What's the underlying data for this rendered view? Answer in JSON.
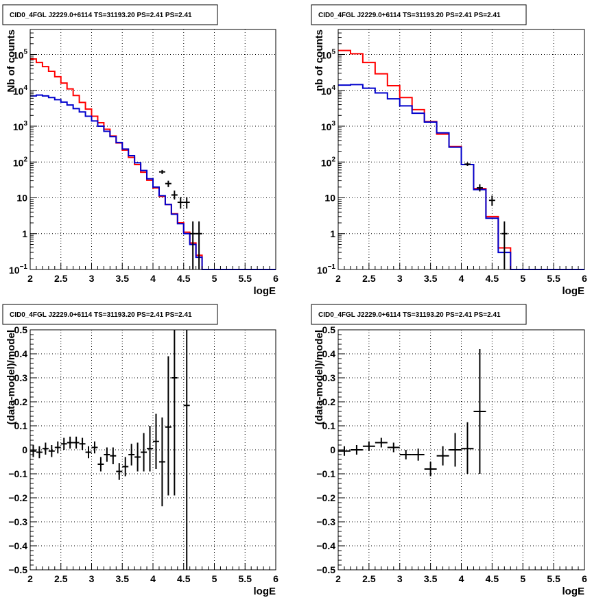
{
  "colors": {
    "model_a": "#ff0000",
    "model_b": "#0000cc",
    "data": "#000000",
    "grid": "#000000",
    "frame": "#000000"
  },
  "chart_data": [
    {
      "type": "line",
      "panel": "top-left",
      "title": "CID0_4FGL J2229.0+6114 TS=31193.20 PS=2.41 PS=2.41",
      "xlabel": "logE",
      "ylabel": "Nb of counts",
      "xlim": [
        2,
        6
      ],
      "ylim": [
        0.1,
        500000
      ],
      "yscale": "log",
      "grid": true,
      "xticks": [
        "2",
        "2.5",
        "3",
        "3.5",
        "4",
        "4.5",
        "5",
        "5.5",
        "6"
      ],
      "yticks": [
        {
          "v": 0.1,
          "b": "10",
          "e": "−1"
        },
        {
          "v": 1,
          "b": "1",
          "e": ""
        },
        {
          "v": 10,
          "b": "10",
          "e": ""
        },
        {
          "v": 100,
          "b": "10",
          "e": "2"
        },
        {
          "v": 1000,
          "b": "10",
          "e": "3"
        },
        {
          "v": 10000,
          "b": "10",
          "e": "4"
        },
        {
          "v": 100000,
          "b": "10",
          "e": "5"
        }
      ],
      "bin_edges": [
        2.0,
        2.1,
        2.2,
        2.3,
        2.4,
        2.5,
        2.6,
        2.7,
        2.8,
        2.9,
        3.0,
        3.1,
        3.2,
        3.3,
        3.4,
        3.5,
        3.6,
        3.7,
        3.8,
        3.9,
        4.0,
        4.1,
        4.2,
        4.3,
        4.4,
        4.5,
        4.6,
        4.7,
        4.8,
        4.9,
        5.0,
        5.1,
        5.2,
        5.3,
        5.4,
        5.5,
        5.6,
        5.7,
        5.8,
        5.9,
        6.0
      ],
      "series": [
        {
          "name": "",
          "style": "red-hist",
          "values": [
            75000,
            60000,
            46000,
            34000,
            24000,
            16000,
            11000,
            7200,
            4600,
            3000,
            1900,
            1250,
            820,
            530,
            340,
            215,
            135,
            85,
            52,
            31,
            19,
            11,
            6.5,
            3.6,
            2,
            1.1,
            0.55,
            0.25,
            0.1,
            0.1,
            0.1,
            0.1,
            0.1,
            0.1,
            0.1,
            0.1,
            0.1,
            0.1,
            0.1,
            0.1
          ]
        },
        {
          "name": "",
          "style": "blue-hist",
          "values": [
            7000,
            7400,
            7000,
            6300,
            5500,
            4700,
            3900,
            3100,
            2500,
            1900,
            1400,
            1000,
            720,
            510,
            350,
            230,
            150,
            95,
            58,
            34,
            20,
            11.5,
            6.5,
            3.5,
            1.9,
            1.0,
            0.5,
            0.22,
            0.1,
            0.1,
            0.1,
            0.1,
            0.1,
            0.1,
            0.1,
            0.1,
            0.1,
            0.1,
            0.1,
            0.1
          ]
        },
        {
          "name": "",
          "style": "data",
          "points": [
            {
              "x": 4.15,
              "y": 53,
              "ylo": 46,
              "yhi": 60
            },
            {
              "x": 4.25,
              "y": 25,
              "ylo": 20,
              "yhi": 30
            },
            {
              "x": 4.35,
              "y": 12,
              "ylo": 9,
              "yhi": 16
            },
            {
              "x": 4.45,
              "y": 7.5,
              "ylo": 5,
              "yhi": 10.5
            },
            {
              "x": 4.55,
              "y": 7.5,
              "ylo": 5,
              "yhi": 10.5
            },
            {
              "x": 4.65,
              "y": 1,
              "ylo": 0.1,
              "yhi": 2.2
            },
            {
              "x": 4.75,
              "y": 1,
              "ylo": 0.1,
              "yhi": 2.2
            }
          ]
        }
      ]
    },
    {
      "type": "line",
      "panel": "top-right",
      "title": "CID0_4FGL J2229.0+6114 TS=31193.20 PS=2.41 PS=2.41",
      "xlabel": "logE",
      "ylabel": "nb of counts",
      "xlim": [
        2,
        6
      ],
      "ylim": [
        0.1,
        500000
      ],
      "yscale": "log",
      "grid": true,
      "xticks": [
        "2",
        "2.5",
        "3",
        "3.5",
        "4",
        "4.5",
        "5",
        "5.5",
        "6"
      ],
      "yticks": [
        {
          "v": 0.1,
          "b": "10",
          "e": "−1"
        },
        {
          "v": 1,
          "b": "1",
          "e": ""
        },
        {
          "v": 10,
          "b": "10",
          "e": ""
        },
        {
          "v": 100,
          "b": "10",
          "e": "2"
        },
        {
          "v": 1000,
          "b": "10",
          "e": "3"
        },
        {
          "v": 10000,
          "b": "10",
          "e": "4"
        },
        {
          "v": 100000,
          "b": "10",
          "e": "5"
        }
      ],
      "bin_edges": [
        2.0,
        2.2,
        2.4,
        2.6,
        2.8,
        3.0,
        3.2,
        3.4,
        3.6,
        3.8,
        4.0,
        4.2,
        4.4,
        4.6,
        4.8,
        5.0,
        5.2,
        5.4,
        5.6,
        5.8,
        6.0
      ],
      "series": [
        {
          "name": "",
          "style": "red-hist",
          "values": [
            130000,
            105000,
            60000,
            29000,
            13500,
            6300,
            2900,
            1350,
            600,
            270,
            85,
            18,
            3,
            0.4,
            0.1,
            0.1,
            0.1,
            0.1,
            0.1,
            0.1
          ]
        },
        {
          "name": "",
          "style": "blue-hist",
          "values": [
            14000,
            14500,
            11500,
            8500,
            5800,
            3700,
            2300,
            1300,
            650,
            260,
            85,
            17,
            2.7,
            0.3,
            0.1,
            0.1,
            0.1,
            0.1,
            0.1,
            0.1
          ]
        },
        {
          "name": "",
          "style": "data",
          "points": [
            {
              "x": 4.1,
              "y": 87,
              "ylo": 78,
              "yhi": 96
            },
            {
              "x": 4.3,
              "y": 19,
              "ylo": 15,
              "yhi": 24
            },
            {
              "x": 4.5,
              "y": 8.5,
              "ylo": 6,
              "yhi": 11.5
            },
            {
              "x": 4.7,
              "y": 1,
              "ylo": 0.1,
              "yhi": 2.2
            }
          ]
        }
      ]
    },
    {
      "type": "scatter",
      "panel": "bottom-left",
      "title": "CID0_4FGL J2229.0+6114 TS=31193.20 PS=2.41 PS=2.41",
      "xlabel": "logE",
      "ylabel": "(data-model)/model",
      "xlim": [
        2,
        6
      ],
      "ylim": [
        -0.5,
        0.5
      ],
      "yscale": "linear",
      "grid": true,
      "xticks": [
        "2",
        "2.5",
        "3",
        "3.5",
        "4",
        "4.5",
        "5",
        "5.5",
        "6"
      ],
      "yticks": [
        {
          "v": -0.5,
          "b": "−0.5",
          "e": ""
        },
        {
          "v": -0.4,
          "b": "−0.4",
          "e": ""
        },
        {
          "v": -0.3,
          "b": "−0.3",
          "e": ""
        },
        {
          "v": -0.2,
          "b": "−0.2",
          "e": ""
        },
        {
          "v": -0.1,
          "b": "−0.1",
          "e": ""
        },
        {
          "v": 0,
          "b": "0",
          "e": ""
        },
        {
          "v": 0.1,
          "b": "0.1",
          "e": ""
        },
        {
          "v": 0.2,
          "b": "0.2",
          "e": ""
        },
        {
          "v": 0.3,
          "b": "0.3",
          "e": ""
        },
        {
          "v": 0.4,
          "b": "0.4",
          "e": ""
        },
        {
          "v": 0.5,
          "b": "0.5",
          "e": ""
        }
      ],
      "series": [
        {
          "name": "",
          "style": "data",
          "halfwidth": 0.05,
          "points": [
            {
              "x": 2.05,
              "y": -0.005,
              "ylo": -0.03,
              "yhi": 0.02
            },
            {
              "x": 2.15,
              "y": -0.01,
              "ylo": -0.035,
              "yhi": 0.015
            },
            {
              "x": 2.25,
              "y": 0.005,
              "ylo": -0.02,
              "yhi": 0.03
            },
            {
              "x": 2.35,
              "y": -0.005,
              "ylo": -0.03,
              "yhi": 0.02
            },
            {
              "x": 2.45,
              "y": 0.01,
              "ylo": -0.015,
              "yhi": 0.035
            },
            {
              "x": 2.55,
              "y": 0.025,
              "ylo": 0.0,
              "yhi": 0.05
            },
            {
              "x": 2.65,
              "y": 0.03,
              "ylo": 0.005,
              "yhi": 0.055
            },
            {
              "x": 2.75,
              "y": 0.03,
              "ylo": 0.005,
              "yhi": 0.055
            },
            {
              "x": 2.85,
              "y": 0.025,
              "ylo": 0.0,
              "yhi": 0.05
            },
            {
              "x": 2.95,
              "y": -0.01,
              "ylo": -0.035,
              "yhi": 0.015
            },
            {
              "x": 3.05,
              "y": 0.01,
              "ylo": -0.015,
              "yhi": 0.035
            },
            {
              "x": 3.15,
              "y": -0.06,
              "ylo": -0.09,
              "yhi": -0.03
            },
            {
              "x": 3.25,
              "y": -0.02,
              "ylo": -0.05,
              "yhi": 0.01
            },
            {
              "x": 3.35,
              "y": -0.025,
              "ylo": -0.06,
              "yhi": 0.01
            },
            {
              "x": 3.45,
              "y": -0.09,
              "ylo": -0.125,
              "yhi": -0.055
            },
            {
              "x": 3.55,
              "y": -0.07,
              "ylo": -0.11,
              "yhi": -0.03
            },
            {
              "x": 3.65,
              "y": -0.02,
              "ylo": -0.065,
              "yhi": 0.025
            },
            {
              "x": 3.75,
              "y": -0.03,
              "ylo": -0.09,
              "yhi": 0.03
            },
            {
              "x": 3.85,
              "y": -0.01,
              "ylo": -0.09,
              "yhi": 0.07
            },
            {
              "x": 3.95,
              "y": 0.005,
              "ylo": -0.09,
              "yhi": 0.1
            },
            {
              "x": 4.05,
              "y": 0.035,
              "ylo": -0.08,
              "yhi": 0.15
            },
            {
              "x": 4.15,
              "y": -0.05,
              "ylo": -0.235,
              "yhi": 0.135
            },
            {
              "x": 4.25,
              "y": 0.095,
              "ylo": -0.19,
              "yhi": 0.39
            },
            {
              "x": 4.35,
              "y": 0.3,
              "ylo": -0.19,
              "yhi": 0.5
            },
            {
              "x": 4.55,
              "y": 0.185,
              "ylo": -0.5,
              "yhi": 0.5
            }
          ]
        }
      ]
    },
    {
      "type": "scatter",
      "panel": "bottom-right",
      "title": "CID0_4FGL J2229.0+6114 TS=31193.20 PS=2.41 PS=2.41",
      "xlabel": "logE",
      "ylabel": "(data-model)/model",
      "xlim": [
        2,
        6
      ],
      "ylim": [
        -0.5,
        0.5
      ],
      "yscale": "linear",
      "grid": true,
      "xticks": [
        "2",
        "2.5",
        "3",
        "3.5",
        "4",
        "4.5",
        "5",
        "5.5",
        "6"
      ],
      "yticks": [
        {
          "v": -0.5,
          "b": "−0.5",
          "e": ""
        },
        {
          "v": -0.4,
          "b": "−0.4",
          "e": ""
        },
        {
          "v": -0.3,
          "b": "−0.3",
          "e": ""
        },
        {
          "v": -0.2,
          "b": "−0.2",
          "e": ""
        },
        {
          "v": -0.1,
          "b": "−0.1",
          "e": ""
        },
        {
          "v": 0,
          "b": "0",
          "e": ""
        },
        {
          "v": 0.1,
          "b": "0.1",
          "e": ""
        },
        {
          "v": 0.2,
          "b": "0.2",
          "e": ""
        },
        {
          "v": 0.3,
          "b": "0.3",
          "e": ""
        },
        {
          "v": 0.4,
          "b": "0.4",
          "e": ""
        },
        {
          "v": 0.5,
          "b": "0.5",
          "e": ""
        }
      ],
      "series": [
        {
          "name": "",
          "style": "data",
          "halfwidth": 0.1,
          "points": [
            {
              "x": 2.1,
              "y": -0.005,
              "ylo": -0.025,
              "yhi": 0.015
            },
            {
              "x": 2.3,
              "y": 0.0,
              "ylo": -0.02,
              "yhi": 0.02
            },
            {
              "x": 2.5,
              "y": 0.015,
              "ylo": -0.005,
              "yhi": 0.035
            },
            {
              "x": 2.7,
              "y": 0.03,
              "ylo": 0.01,
              "yhi": 0.05
            },
            {
              "x": 2.9,
              "y": 0.01,
              "ylo": -0.01,
              "yhi": 0.03
            },
            {
              "x": 3.1,
              "y": -0.02,
              "ylo": -0.04,
              "yhi": 0.0
            },
            {
              "x": 3.3,
              "y": -0.02,
              "ylo": -0.045,
              "yhi": 0.005
            },
            {
              "x": 3.5,
              "y": -0.08,
              "ylo": -0.11,
              "yhi": -0.05
            },
            {
              "x": 3.7,
              "y": -0.025,
              "ylo": -0.065,
              "yhi": 0.015
            },
            {
              "x": 3.9,
              "y": 0.0,
              "ylo": -0.07,
              "yhi": 0.07
            },
            {
              "x": 4.1,
              "y": 0.005,
              "ylo": -0.1,
              "yhi": 0.115
            },
            {
              "x": 4.3,
              "y": 0.16,
              "ylo": -0.1,
              "yhi": 0.42
            }
          ]
        }
      ]
    }
  ]
}
